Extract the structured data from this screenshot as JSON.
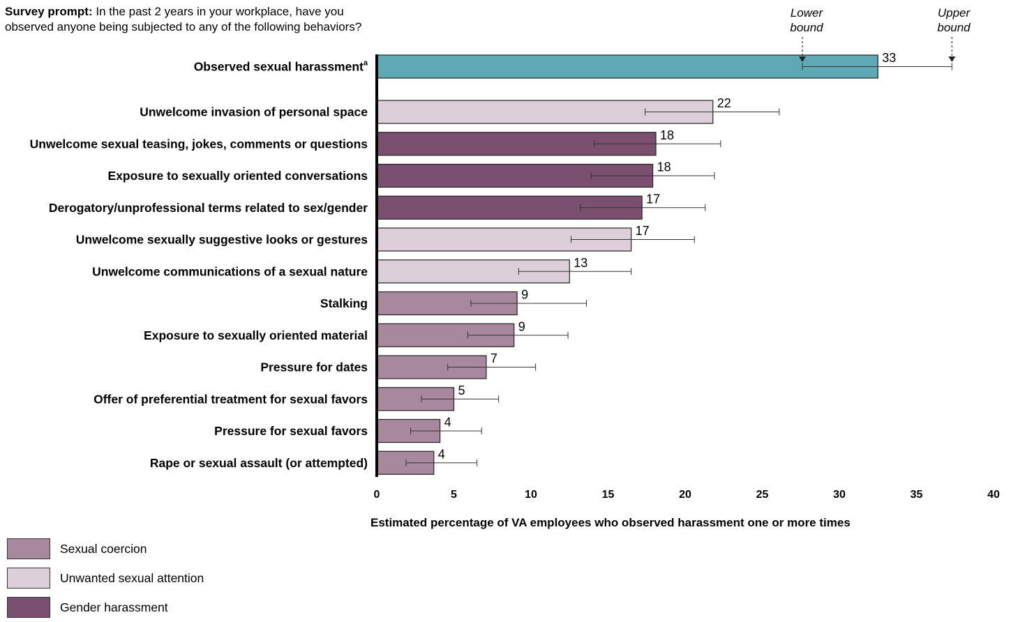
{
  "prompt": {
    "bold": "Survey prompt:",
    "line1": " In the past 2 years in your workplace, have you",
    "line2": "observed anyone being subjected to any of the following behaviors?"
  },
  "bounds": {
    "lower": [
      "Lower",
      "bound"
    ],
    "upper": [
      "Upper",
      "bound"
    ]
  },
  "colors": {
    "observed": "#5fa8b6",
    "sexual_coercion": "#a8889f",
    "unwanted_sexual_attention": "#dccfd9",
    "gender_harassment": "#7b4f6f"
  },
  "legend": [
    {
      "label": "Sexual coercion",
      "color_key": "sexual_coercion"
    },
    {
      "label": "Unwanted sexual attention",
      "color_key": "unwanted_sexual_attention"
    },
    {
      "label": "Gender harassment",
      "color_key": "gender_harassment"
    }
  ],
  "chart_data": {
    "type": "bar",
    "orientation": "horizontal",
    "xlabel": "Estimated percentage of VA employees who observed harassment one or more times",
    "xlim": [
      0,
      40
    ],
    "xticks": [
      0,
      5,
      10,
      15,
      20,
      25,
      30,
      35,
      40
    ],
    "bars": [
      {
        "label": "Observed sexual harassment",
        "superscript": "a",
        "value": 32.5,
        "value_label": "33",
        "lower": 27.6,
        "upper": 37.3,
        "category": "observed"
      },
      {
        "label": "Unwelcome invasion of personal space",
        "value": 21.8,
        "value_label": "22",
        "lower": 17.4,
        "upper": 26.1,
        "category": "unwanted_sexual_attention"
      },
      {
        "label": "Unwelcome sexual teasing, jokes, comments or questions",
        "value": 18.1,
        "value_label": "18",
        "lower": 14.1,
        "upper": 22.3,
        "category": "gender_harassment"
      },
      {
        "label": "Exposure to sexually oriented conversations",
        "value": 17.9,
        "value_label": "18",
        "lower": 13.9,
        "upper": 21.9,
        "category": "gender_harassment"
      },
      {
        "label": "Derogatory/unprofessional terms related to sex/gender",
        "value": 17.2,
        "value_label": "17",
        "lower": 13.2,
        "upper": 21.3,
        "category": "gender_harassment"
      },
      {
        "label": "Unwelcome sexually suggestive looks or gestures",
        "value": 16.5,
        "value_label": "17",
        "lower": 12.6,
        "upper": 20.6,
        "category": "unwanted_sexual_attention"
      },
      {
        "label": "Unwelcome communications of a sexual nature",
        "value": 12.5,
        "value_label": "13",
        "lower": 9.2,
        "upper": 16.5,
        "category": "unwanted_sexual_attention"
      },
      {
        "label": "Stalking",
        "value": 9.1,
        "value_label": "9",
        "lower": 6.1,
        "upper": 13.6,
        "category": "sexual_coercion"
      },
      {
        "label": "Exposure to sexually oriented material",
        "value": 8.9,
        "value_label": "9",
        "lower": 5.9,
        "upper": 12.4,
        "category": "sexual_coercion"
      },
      {
        "label": "Pressure for dates",
        "value": 7.1,
        "value_label": "7",
        "lower": 4.6,
        "upper": 10.3,
        "category": "sexual_coercion"
      },
      {
        "label": "Offer of preferential treatment for sexual favors",
        "value": 5.0,
        "value_label": "5",
        "lower": 2.9,
        "upper": 7.9,
        "category": "sexual_coercion"
      },
      {
        "label": "Pressure for sexual favors",
        "value": 4.1,
        "value_label": "4",
        "lower": 2.2,
        "upper": 6.8,
        "category": "sexual_coercion"
      },
      {
        "label": "Rape or sexual assault (or attempted)",
        "value": 3.7,
        "value_label": "4",
        "lower": 1.9,
        "upper": 6.5,
        "category": "sexual_coercion"
      }
    ]
  }
}
